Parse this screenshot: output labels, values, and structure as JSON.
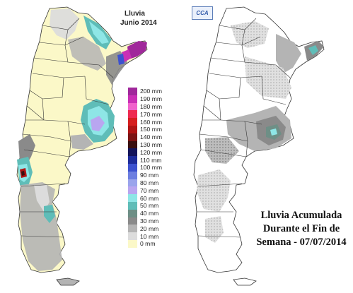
{
  "left_map": {
    "title": "Lluvia",
    "subtitle": "Junio 2014"
  },
  "legend": [
    {
      "label": "200 mm",
      "color": "#a0289b"
    },
    {
      "label": "190 mm",
      "color": "#ca2fb5"
    },
    {
      "label": "180 mm",
      "color": "#f061cb"
    },
    {
      "label": "170 mm",
      "color": "#ee2a50"
    },
    {
      "label": "160 mm",
      "color": "#d61e1e"
    },
    {
      "label": "150 mm",
      "color": "#b01414"
    },
    {
      "label": "140 mm",
      "color": "#7c1414"
    },
    {
      "label": "130 mm",
      "color": "#3a1010"
    },
    {
      "label": "120 mm",
      "color": "#14145a"
    },
    {
      "label": "110 mm",
      "color": "#1e2c9a"
    },
    {
      "label": "100 mm",
      "color": "#3d52cf"
    },
    {
      "label": "90 mm",
      "color": "#6c7ee0"
    },
    {
      "label": "80 mm",
      "color": "#9aa4ec"
    },
    {
      "label": "70 mm",
      "color": "#b9a6f0"
    },
    {
      "label": "60 mm",
      "color": "#8ee6e6"
    },
    {
      "label": "50 mm",
      "color": "#5fbdb8"
    },
    {
      "label": "40 mm",
      "color": "#6e8f86"
    },
    {
      "label": "30 mm",
      "color": "#8a8a8a"
    },
    {
      "label": "20 mm",
      "color": "#b4b4b4"
    },
    {
      "label": "10 mm",
      "color": "#dcdcdc"
    },
    {
      "label": "0 mm",
      "color": "#fbf8c8"
    }
  ],
  "right_map": {
    "badge": "CCA",
    "caption_lines": [
      "Lluvia Acumulada",
      "Durante el Fin de",
      "Semana - 07/07/2014"
    ]
  }
}
